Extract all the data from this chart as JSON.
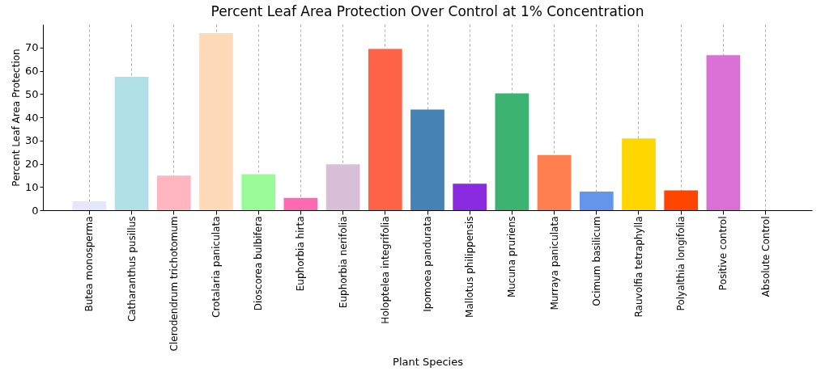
{
  "chart_data": {
    "type": "bar",
    "title": "Percent Leaf Area Protection Over Control at 1% Concentration",
    "xlabel": "Plant Species",
    "ylabel": "Percent Leaf Area Protection",
    "categories": [
      "Butea monosperma",
      "Catharanthus pusillus",
      "Clerodendrum trichotomum",
      "Crotalaria paniculata",
      "Dioscorea bulbifera",
      "Euphorbia hirta",
      "Euphorbia nerifolia",
      "Holoptelea integrifolia",
      "Ipomoea pandurata",
      "Mallotus philippensis",
      "Mucuna pruriens",
      "Murraya paniculata",
      "Ocimum basilicum",
      "Rauvolfia tetraphylla",
      "Polyalthia longifolia",
      "Positive control",
      "Absolute Control"
    ],
    "values": [
      3.8,
      57.4,
      14.9,
      76.2,
      15.5,
      5.3,
      19.7,
      69.4,
      43.3,
      11.4,
      50.3,
      23.7,
      8.0,
      30.9,
      8.5,
      66.7,
      0
    ],
    "colors": [
      "#e6e6fa",
      "#b0e0e6",
      "#ffb6c1",
      "#ffdab9",
      "#98fb98",
      "#ff69b4",
      "#d8bfd8",
      "#ff6347",
      "#4682b4",
      "#8a2be2",
      "#3cb371",
      "#ff7f50",
      "#6495ed",
      "#ffd700",
      "#ff4500",
      "#da70d6",
      "#a52a2a"
    ],
    "ylim": [
      0,
      80
    ],
    "yticks": [
      0,
      10,
      20,
      30,
      40,
      50,
      60,
      70
    ],
    "grid": "x"
  }
}
